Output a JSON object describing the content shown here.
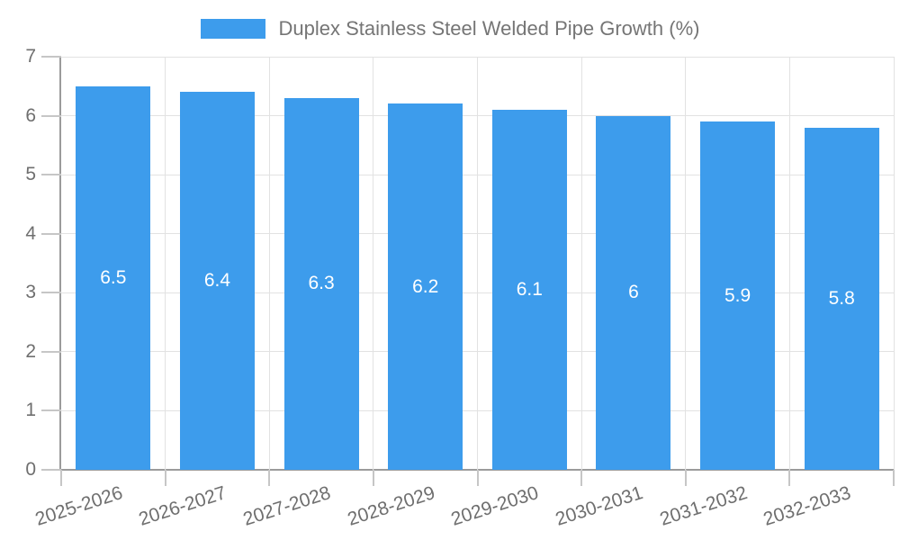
{
  "legend": {
    "label": "Duplex Stainless Steel Welded Pipe Growth (%)"
  },
  "colors": {
    "bar": "#3d9cec",
    "grid": "#e2e2e2",
    "axis": "#9b9b9b",
    "tick": "#c6c6c6",
    "axis_label": "#6f6f6f",
    "legend_text": "#757575",
    "value_label": "#ffffff",
    "background": "#ffffff"
  },
  "chart_data": {
    "type": "bar",
    "title": "Duplex Stainless Steel Welded Pipe Growth (%)",
    "categories": [
      "2025-2026",
      "2026-2027",
      "2027-2028",
      "2028-2029",
      "2029-2030",
      "2030-2031",
      "2031-2032",
      "2032-2033"
    ],
    "values": [
      6.5,
      6.4,
      6.3,
      6.2,
      6.1,
      6,
      5.9,
      5.8
    ],
    "value_labels": [
      "6.5",
      "6.4",
      "6.3",
      "6.2",
      "6.1",
      "6",
      "5.9",
      "5.8"
    ],
    "xlabel": "",
    "ylabel": "",
    "ylim": [
      0,
      7
    ],
    "y_ticks": [
      0,
      1,
      2,
      3,
      4,
      5,
      6,
      7
    ],
    "grid": true,
    "legend_position": "top",
    "x_tick_rotation_deg": -18
  }
}
